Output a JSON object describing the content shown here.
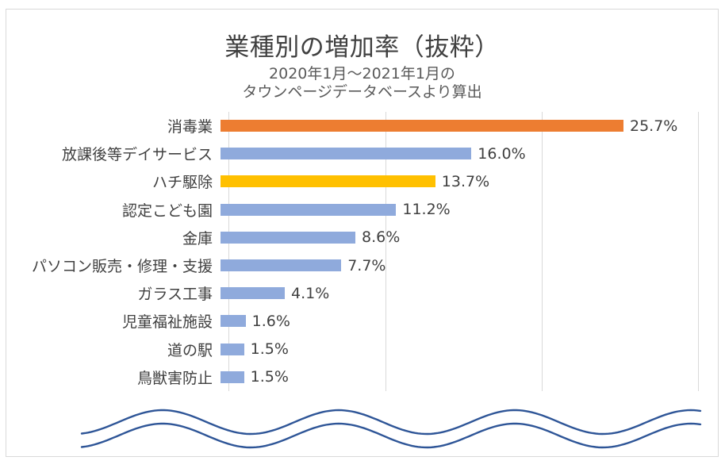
{
  "chart_data": {
    "type": "bar",
    "orientation": "horizontal",
    "title": "業種別の増加率（抜粋）",
    "subtitle_line1": "2020年1月～2021年1月の",
    "subtitle_line2": "タウンページデータベースより算出",
    "categories": [
      "消毒業",
      "放課後等デイサービス",
      "ハチ駆除",
      "認定こども園",
      "金庫",
      "パソコン販売・修理・支援",
      "ガラス工事",
      "児童福祉施設",
      "道の駅",
      "鳥獣害防止"
    ],
    "values": [
      25.7,
      16.0,
      13.7,
      11.2,
      8.6,
      7.7,
      4.1,
      1.6,
      1.5,
      1.5
    ],
    "value_labels": [
      "25.7%",
      "16.0%",
      "13.7%",
      "11.2%",
      "8.6%",
      "7.7%",
      "4.1%",
      "1.6%",
      "1.5%",
      "1.5%"
    ],
    "bar_colors": [
      "#ED7D31",
      "#8FAADC",
      "#FFC000",
      "#8FAADC",
      "#8FAADC",
      "#8FAADC",
      "#8FAADC",
      "#8FAADC",
      "#8FAADC",
      "#8FAADC"
    ],
    "xlabel": "",
    "ylabel": "",
    "xlim": [
      0,
      30
    ],
    "gridline_values_percent": [
      0,
      10,
      20,
      30
    ],
    "grid": true,
    "legend": false,
    "data_labels_shown": true
  },
  "colors": {
    "default_bar": "#8FAADC",
    "highlight_top": "#ED7D31",
    "highlight_third": "#FFC000",
    "wave_decoration": "#2E5597",
    "gridline": "#D9D9D9",
    "text_dark": "#404040",
    "text_gray": "#595959",
    "frame_border": "#D9D9D9"
  }
}
